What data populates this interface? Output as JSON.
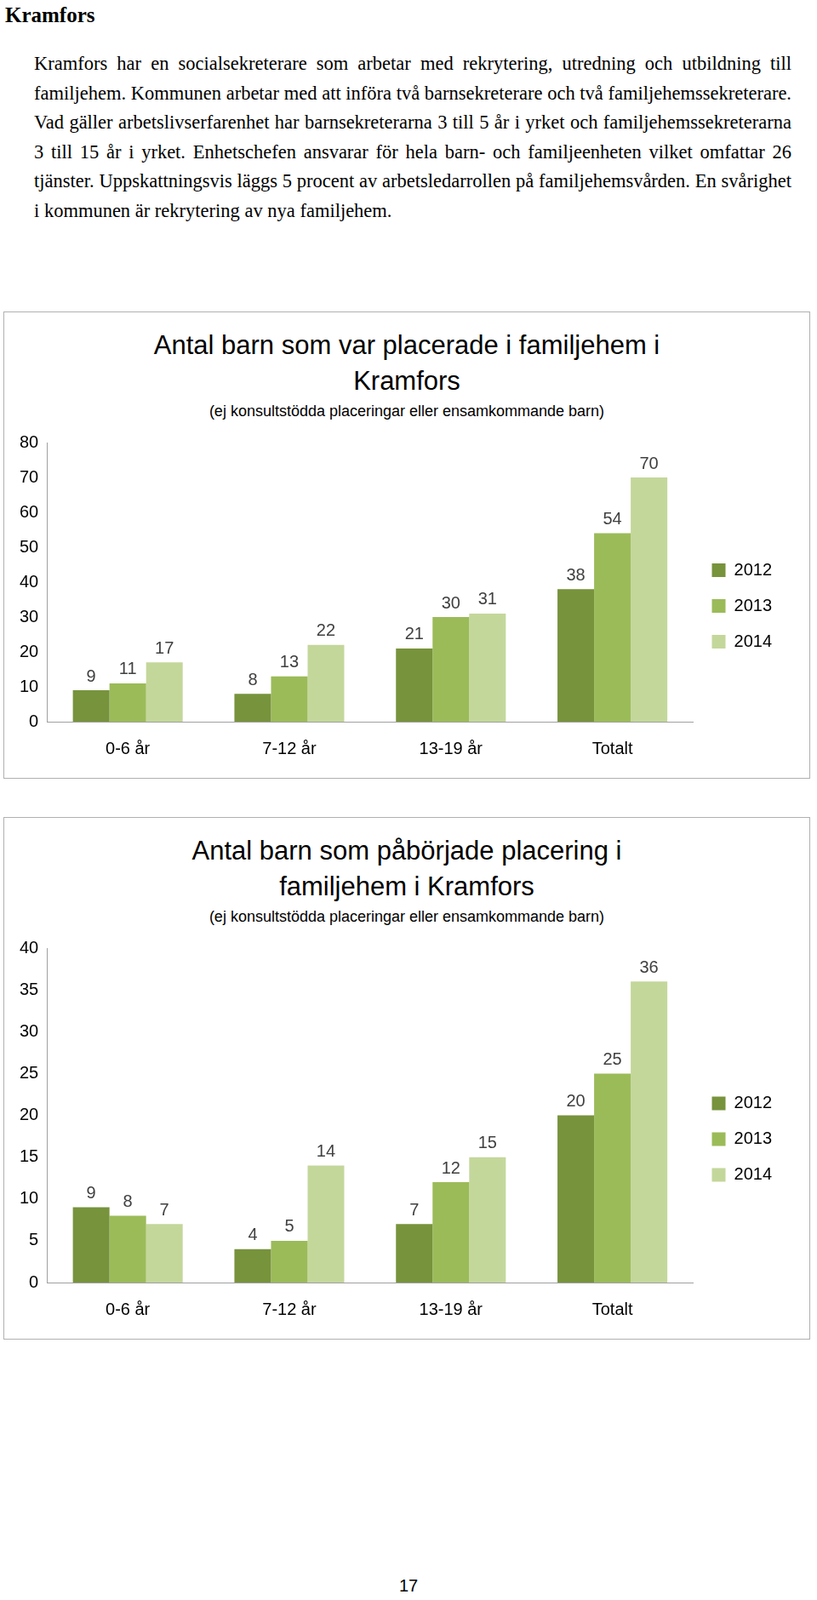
{
  "document": {
    "heading": "Kramfors",
    "paragraph": "Kramfors har en socialsekreterare som arbetar med rekrytering, utredning och utbildning till familjehem. Kommunen arbetar med att införa två barnsekreterare och två familjehemssekreterare. Vad gäller arbetslivserfarenhet har barnsekreterarna 3 till 5 år i yrket och familjehemssekreterarna 3 till 15 år i yrket. Enhetschefen ansvarar för hela barn- och familjeenheten vilket omfattar 26 tjänster. Uppskattningsvis läggs 5 procent av arbetsledarrollen på familjehemsvården. En svårighet i kommunen är rekrytering av nya familjehem.",
    "page_number": "17"
  },
  "chart_data": [
    {
      "type": "bar",
      "title": "Antal barn som var placerade i familjehem i Kramfors",
      "subtitle": "(ej konsultstödda placeringar eller ensamkommande barn)",
      "categories": [
        "0-6 år",
        "7-12 år",
        "13-19 år",
        "Totalt"
      ],
      "series": [
        {
          "name": "2012",
          "color": "#77933c",
          "values": [
            9,
            8,
            21,
            38
          ]
        },
        {
          "name": "2013",
          "color": "#9bbb59",
          "values": [
            11,
            13,
            30,
            54
          ]
        },
        {
          "name": "2014",
          "color": "#c4d79b",
          "values": [
            17,
            22,
            31,
            70
          ]
        }
      ],
      "ylim": [
        0,
        80
      ],
      "yticks": [
        0,
        10,
        20,
        30,
        40,
        50,
        60,
        70,
        80
      ],
      "grid": false,
      "legend": "right",
      "data_labels": true
    },
    {
      "type": "bar",
      "title": "Antal barn som påbörjade placering i familjehem i Kramfors",
      "subtitle": "(ej konsultstödda placeringar eller ensamkommande barn)",
      "categories": [
        "0-6 år",
        "7-12 år",
        "13-19 år",
        "Totalt"
      ],
      "series": [
        {
          "name": "2012",
          "color": "#77933c",
          "values": [
            9,
            4,
            7,
            20
          ]
        },
        {
          "name": "2013",
          "color": "#9bbb59",
          "values": [
            8,
            5,
            12,
            25
          ]
        },
        {
          "name": "2014",
          "color": "#c4d79b",
          "values": [
            7,
            14,
            15,
            36
          ]
        }
      ],
      "ylim": [
        0,
        40
      ],
      "yticks": [
        0,
        5,
        10,
        15,
        20,
        25,
        30,
        35,
        40
      ],
      "grid": false,
      "legend": "right",
      "data_labels": true
    }
  ]
}
